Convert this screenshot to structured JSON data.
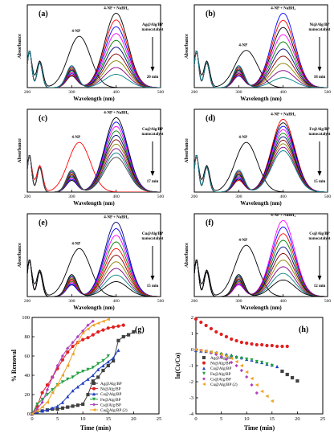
{
  "figure": {
    "panels": [
      {
        "letter": "(a)",
        "catalyst_line1": "Ag@Alg/BP",
        "catalyst_line2": "nanocatalyst",
        "time_label": "20 min",
        "np_label": "4-NP",
        "np_nabh4_label": "4-NP + NaBH₄"
      },
      {
        "letter": "(b)",
        "catalyst_line1": "Ni@Alg/BP",
        "catalyst_line2": "nanocatalyst",
        "time_label": "18 min",
        "np_label": "4-NP",
        "np_nabh4_label": "4-NP + NaBH₄"
      },
      {
        "letter": "(c)",
        "catalyst_line1": "Co@Alg/BP",
        "catalyst_line2": "nanocatalyst",
        "time_label": "17 min",
        "np_label": "4-NP",
        "np_nabh4_label": "4-NP + NaBH₄"
      },
      {
        "letter": "(d)",
        "catalyst_line1": "Fe@Alg/BP",
        "catalyst_line2": "nanocatalyst",
        "time_label": "15 min",
        "np_label": "4-NP",
        "np_nabh4_label": "4-NP + NaBH₄"
      },
      {
        "letter": "(e)",
        "catalyst_line1": "Cu@Alg/BP",
        "catalyst_line2": "nanocatalyst",
        "time_label": "15 min",
        "np_label": "4-NP",
        "np_nabh4_label": "4-NP + NaBH₄"
      },
      {
        "letter": "(f)",
        "catalyst_line1": "Cs@Alg/BP",
        "catalyst_line2": "nanocatalyst",
        "time_label": "12 min",
        "np_label": "4-NP",
        "np_nabh4_label": "4-NP + NaBH₄"
      }
    ],
    "g_letter": "(g)",
    "h_letter": "(h)"
  },
  "chart_data": [
    {
      "type": "line",
      "panel": "(a)",
      "xlabel": "Wavelength (nm)",
      "ylabel": "Absorbance",
      "xlim": [
        200,
        500
      ],
      "xticks": [
        200,
        300,
        400,
        500
      ],
      "peak_4np_nm": 317,
      "peak_4np_nabh4_nm": 400,
      "np_peak_abs": 0.62,
      "max_abs": 0.9,
      "min_abs": 0.16,
      "n_scans": 10,
      "scan_colors": [
        "#000000",
        "#ff0000",
        "#0000ff",
        "#ff00ff",
        "#008000",
        "#000080",
        "#800000",
        "#808000",
        "#800080",
        "#008080"
      ]
    },
    {
      "type": "line",
      "panel": "(b)",
      "xlabel": "Wavelength (nm)",
      "ylabel": "Absorbance",
      "xlim": [
        200,
        500
      ],
      "xticks": [
        200,
        300,
        400,
        500
      ],
      "peak_4np_nm": 317,
      "peak_4np_nabh4_nm": 400,
      "np_peak_abs": 0.45,
      "max_abs": 0.9,
      "min_abs": 0.12,
      "n_scans": 10,
      "scan_colors": [
        "#0000ff",
        "#ff0000",
        "#000000",
        "#ff00ff",
        "#008000",
        "#000080",
        "#800000",
        "#808000",
        "#800080",
        "#008080"
      ]
    },
    {
      "type": "line",
      "panel": "(c)",
      "xlabel": "Wavelength (nm)",
      "ylabel": "Absorbance",
      "xlim": [
        200,
        500
      ],
      "xticks": [
        200,
        300,
        400,
        500
      ],
      "peak_4np_nm": 317,
      "peak_4np_nabh4_nm": 400,
      "np_peak_abs": 0.6,
      "max_abs": 0.9,
      "min_abs": 0.42,
      "n_scans": 10,
      "scan_colors": [
        "#000000",
        "#0000ff",
        "#ff00ff",
        "#008000",
        "#000080",
        "#800000",
        "#808000",
        "#800080",
        "#008080",
        "#404040"
      ]
    },
    {
      "type": "line",
      "panel": "(d)",
      "xlabel": "Wavelength (nm)",
      "ylabel": "Absorbance",
      "xlim": [
        200,
        500
      ],
      "xticks": [
        200,
        300,
        400,
        500
      ],
      "peak_4np_nm": 317,
      "peak_4np_nabh4_nm": 400,
      "np_peak_abs": 0.6,
      "max_abs": 0.88,
      "min_abs": 0.5,
      "n_scans": 10,
      "scan_colors": [
        "#ff0000",
        "#000000",
        "#0000ff",
        "#ff00ff",
        "#008000",
        "#000080",
        "#800000",
        "#808000",
        "#800080",
        "#008080"
      ]
    },
    {
      "type": "line",
      "panel": "(e)",
      "xlabel": "Wavelength (nm)",
      "ylabel": "Absorbance",
      "xlim": [
        200,
        500
      ],
      "xticks": [
        200,
        300,
        400,
        500
      ],
      "peak_4np_nm": 317,
      "peak_4np_nabh4_nm": 400,
      "np_peak_abs": 0.58,
      "max_abs": 0.9,
      "min_abs": 0.18,
      "n_scans": 10,
      "scan_colors": [
        "#000080",
        "#0000ff",
        "#ff00ff",
        "#008000",
        "#ff0000",
        "#800000",
        "#808000",
        "#800080",
        "#008080",
        "#000000"
      ]
    },
    {
      "type": "line",
      "panel": "(f)",
      "xlabel": "Wavelength (nm)",
      "ylabel": "Absorbance",
      "xlim": [
        200,
        500
      ],
      "xticks": [
        200,
        300,
        400,
        500
      ],
      "peak_4np_nm": 317,
      "peak_4np_nabh4_nm": 400,
      "np_peak_abs": 0.62,
      "max_abs": 0.92,
      "min_abs": 0.2,
      "n_scans": 10,
      "scan_colors": [
        "#ff00ff",
        "#0000ff",
        "#ff0000",
        "#008000",
        "#000080",
        "#800000",
        "#808000",
        "#800080",
        "#008080",
        "#000000"
      ]
    },
    {
      "type": "line",
      "panel": "(g)",
      "xlabel": "Time (min)",
      "ylabel": "% Removal",
      "xlim": [
        0,
        25
      ],
      "ylim": [
        0,
        100
      ],
      "xticks": [
        0,
        5,
        10,
        15,
        20,
        25
      ],
      "yticks": [
        0,
        20,
        40,
        60,
        80,
        100
      ],
      "legend_position": "bottom-right",
      "series": [
        {
          "name": "Ag@Alg/BP",
          "color": "#404040",
          "marker": "square",
          "x": [
            0,
            1,
            2,
            3,
            4,
            5,
            6,
            7,
            8,
            9,
            10,
            11,
            12,
            13,
            14,
            15,
            16,
            17,
            18,
            19,
            20
          ],
          "y": [
            0,
            2,
            3,
            4,
            5,
            5,
            6,
            7,
            8,
            9,
            10,
            20,
            34,
            38,
            45,
            50,
            55,
            76,
            80,
            82,
            85
          ]
        },
        {
          "name": "Ni@Alg/BP",
          "color": "#e02020",
          "marker": "circle",
          "x": [
            0,
            1,
            2,
            3,
            4,
            5,
            6,
            7,
            8,
            9,
            10,
            11,
            12,
            13,
            14,
            15,
            16,
            17,
            18
          ],
          "y": [
            0,
            8,
            22,
            30,
            38,
            47,
            56,
            64,
            70,
            74,
            77,
            79,
            82,
            85,
            87,
            89,
            90,
            91,
            92
          ]
        },
        {
          "name": "Co@Alg/BP",
          "color": "#2040c0",
          "marker": "triangle",
          "x": [
            0,
            1,
            2,
            3,
            4,
            5,
            6,
            7,
            8,
            9,
            10,
            11,
            12,
            13,
            14,
            15,
            16,
            17
          ],
          "y": [
            0,
            2,
            3,
            4,
            6,
            8,
            12,
            18,
            24,
            28,
            32,
            36,
            40,
            46,
            50,
            54,
            58,
            66
          ]
        },
        {
          "name": "Fe@Alg/BP",
          "color": "#20a040",
          "marker": "triangle-down",
          "x": [
            0,
            1,
            2,
            3,
            4,
            5,
            6,
            7,
            8,
            9,
            10,
            11,
            12,
            13,
            14,
            15
          ],
          "y": [
            0,
            10,
            15,
            20,
            25,
            30,
            33,
            36,
            38,
            42,
            44,
            46,
            48,
            52,
            55,
            60
          ]
        },
        {
          "name": "Cs@Alg/BP",
          "color": "#b040c0",
          "marker": "diamond",
          "x": [
            0,
            1,
            2,
            3,
            4,
            5,
            6,
            7,
            8,
            9,
            10,
            11,
            12
          ],
          "y": [
            0,
            5,
            12,
            25,
            38,
            50,
            60,
            68,
            74,
            80,
            86,
            92,
            96
          ]
        },
        {
          "name": "Cu@Alg/BP (2)",
          "color": "#f0a020",
          "marker": "triangle-left",
          "x": [
            0,
            1,
            2,
            3,
            4,
            5,
            6,
            7,
            8,
            9,
            10,
            11,
            12,
            13,
            14,
            15
          ],
          "y": [
            0,
            3,
            7,
            12,
            22,
            30,
            40,
            50,
            62,
            74,
            84,
            88,
            92,
            94,
            96,
            98
          ]
        }
      ]
    },
    {
      "type": "scatter",
      "panel": "(h)",
      "xlabel": "Time (min)",
      "ylabel": "ln(Ct/Co)",
      "xlim": [
        0,
        25
      ],
      "ylim": [
        -4,
        2
      ],
      "xticks": [
        0,
        5,
        10,
        15,
        20,
        25
      ],
      "yticks": [
        -4,
        -3,
        -2,
        -1,
        0,
        1,
        2
      ],
      "legend_position": "bottom-left",
      "series": [
        {
          "name": "Ag@Alg/BP",
          "color": "#404040",
          "marker": "square",
          "x": [
            17,
            18,
            19,
            20
          ],
          "y": [
            -1.35,
            -1.55,
            -1.75,
            -1.95
          ]
        },
        {
          "name": "Ni@Alg/BP",
          "color": "#e02020",
          "marker": "circle",
          "x": [
            0,
            1,
            2,
            3,
            4,
            5,
            6,
            7,
            8,
            9,
            10,
            11,
            12,
            13,
            14,
            15,
            16,
            17,
            18
          ],
          "y": [
            1.9,
            1.7,
            1.5,
            1.3,
            1.1,
            0.95,
            0.8,
            0.65,
            0.55,
            0.45,
            0.4,
            0.35,
            0.3,
            0.3,
            0.25,
            0.25,
            0.2,
            0.2,
            0.2
          ]
        },
        {
          "name": "Co@Alg/BP",
          "color": "#2040c0",
          "marker": "triangle",
          "x": [
            0,
            1,
            2,
            3,
            4,
            5,
            6,
            7,
            8,
            9,
            10,
            11,
            12,
            13,
            14,
            15,
            16
          ],
          "y": [
            -0.05,
            -0.08,
            -0.1,
            -0.15,
            -0.2,
            -0.25,
            -0.3,
            -0.35,
            -0.45,
            -0.5,
            -0.6,
            -0.65,
            -0.75,
            -0.8,
            -0.9,
            -0.95,
            -1.05
          ]
        },
        {
          "name": "Fe@Alg/BP",
          "color": "#20a040",
          "marker": "triangle-down",
          "x": [
            0,
            1,
            2,
            3,
            4,
            5,
            6,
            7,
            8,
            9,
            10,
            11,
            12,
            13,
            14,
            15
          ],
          "y": [
            -0.05,
            -0.1,
            -0.15,
            -0.2,
            -0.25,
            -0.3,
            -0.4,
            -0.45,
            -0.5,
            -0.55,
            -0.6,
            -0.65,
            -0.75,
            -0.8,
            -0.9,
            -1.0
          ]
        },
        {
          "name": "Cs@Alg/BP",
          "color": "#b040c0",
          "marker": "diamond",
          "x": [
            0,
            1,
            2,
            3,
            4,
            5,
            6,
            7,
            8,
            9,
            10,
            11,
            12
          ],
          "y": [
            0,
            -0.05,
            -0.1,
            -0.2,
            -0.3,
            -0.45,
            -0.6,
            -0.8,
            -1.0,
            -1.3,
            -1.7,
            -2.2,
            -2.7
          ]
        },
        {
          "name": "Cu@Alg/BP (2)",
          "color": "#f0a020",
          "marker": "triangle-left",
          "x": [
            0,
            1,
            2,
            3,
            4,
            5,
            6,
            7,
            8,
            9,
            10,
            11,
            12,
            13,
            14,
            15
          ],
          "y": [
            0,
            -0.05,
            -0.1,
            -0.15,
            -0.2,
            -0.3,
            -0.4,
            -0.55,
            -0.75,
            -1.0,
            -1.4,
            -1.8,
            -2.2,
            -2.6,
            -2.9,
            -3.2
          ]
        }
      ]
    }
  ]
}
